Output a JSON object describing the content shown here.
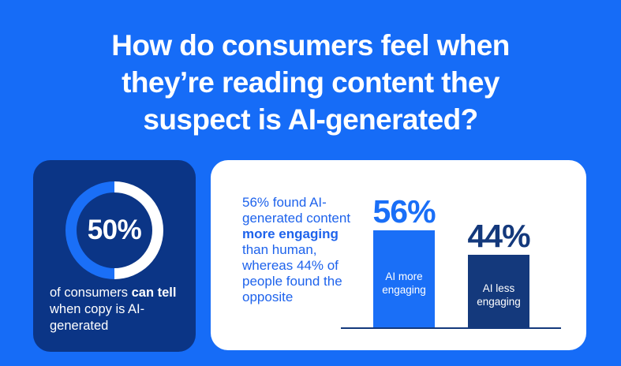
{
  "title": {
    "line1": "How do consumers feel when",
    "line2": "they’re reading content they",
    "line3": "suspect is AI-generated?"
  },
  "colors": {
    "background_blue": "#166CF7",
    "navy_card": "#0B3586",
    "bar_navy": "#14397C",
    "bright_blue": "#1A6FF7",
    "white": "#FFFFFF",
    "paragraph_blue": "#1E63EC"
  },
  "left_card": {
    "caption": {
      "parts": [
        {
          "text": "of consumers ",
          "bold": false
        },
        {
          "text": "can tell",
          "bold": true
        },
        {
          "text": " when copy is AI-generated",
          "bold": false
        }
      ]
    }
  },
  "right_card": {
    "paragraph": {
      "parts": [
        {
          "text": "56% found AI-generated content ",
          "bold": false
        },
        {
          "text": "more engaging",
          "bold": true
        },
        {
          "text": " than human, whereas 44% of people found the opposite",
          "bold": false
        }
      ]
    }
  },
  "chart_data": [
    {
      "type": "pie",
      "subtype": "donut",
      "value_label": "50%",
      "values": [
        50,
        50
      ],
      "labels": [
        "can tell when copy is AI-generated",
        "remainder"
      ],
      "colors": [
        "#1A6FF7",
        "#FFFFFF"
      ],
      "title": "50% of consumers can tell when copy is AI-generated",
      "legend_position": "none"
    },
    {
      "type": "bar",
      "categories": [
        "AI more engaging",
        "AI less engaging"
      ],
      "values": [
        56,
        44
      ],
      "value_labels": [
        "56%",
        "44%"
      ],
      "bar_colors": [
        "#1A6FF7",
        "#14397C"
      ],
      "title": "56% found AI-generated content more engaging than human, whereas 44% of people found the opposite",
      "xlabel": "",
      "ylabel": "",
      "ylim": [
        0,
        60
      ],
      "grid": false,
      "axis_style": "baseline only, no ticks or gridlines",
      "legend_position": "none"
    }
  ]
}
